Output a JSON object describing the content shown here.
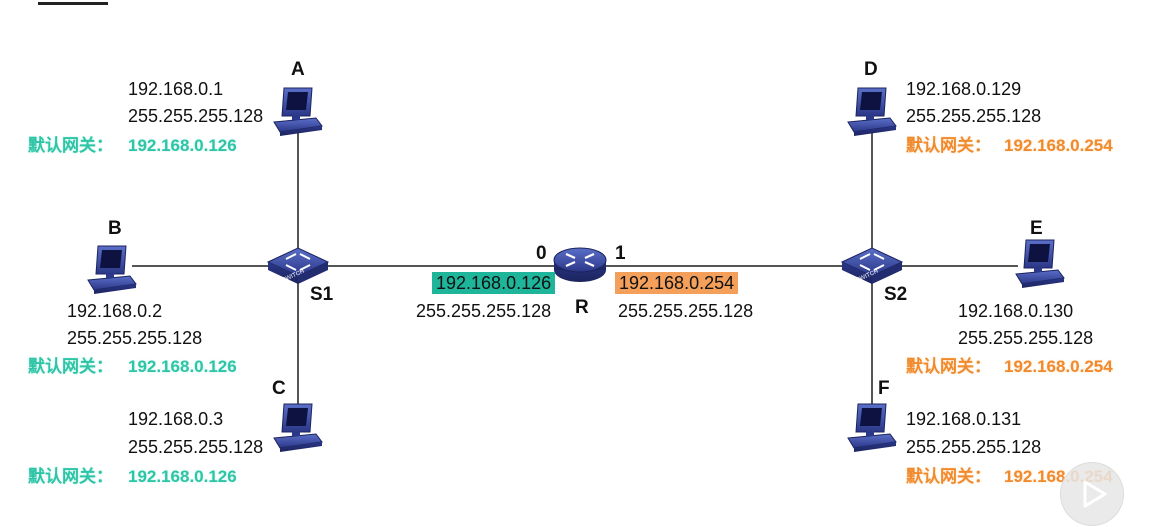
{
  "network": {
    "hosts": {
      "A": {
        "label": "A",
        "ip": "192.168.0.1",
        "mask": "255.255.255.128",
        "gw_label": "默认网关：",
        "gw": "192.168.0.126"
      },
      "B": {
        "label": "B",
        "ip": "192.168.0.2",
        "mask": "255.255.255.128",
        "gw_label": "默认网关：",
        "gw": "192.168.0.126"
      },
      "C": {
        "label": "C",
        "ip": "192.168.0.3",
        "mask": "255.255.255.128",
        "gw_label": "默认网关：",
        "gw": "192.168.0.126"
      },
      "D": {
        "label": "D",
        "ip": "192.168.0.129",
        "mask": "255.255.255.128",
        "gw_label": "默认网关：",
        "gw": "192.168.0.254"
      },
      "E": {
        "label": "E",
        "ip": "192.168.0.130",
        "mask": "255.255.255.128",
        "gw_label": "默认网关：",
        "gw": "192.168.0.254"
      },
      "F": {
        "label": "F",
        "ip": "192.168.0.131",
        "mask": "255.255.255.128",
        "gw_label": "默认网关：",
        "gw": "192.168.0.254"
      }
    },
    "switches": {
      "S1": {
        "label": "S1",
        "device_text": "SWITCH"
      },
      "S2": {
        "label": "S2",
        "device_text": "SWITCH"
      }
    },
    "router": {
      "label": "R",
      "device_text": "ROUTER",
      "port0": {
        "label": "0",
        "ip": "192.168.0.126",
        "mask": "255.255.255.128"
      },
      "port1": {
        "label": "1",
        "ip": "192.168.0.254",
        "mask": "255.255.255.128"
      }
    }
  },
  "colors": {
    "left_subnet": "#2ec4a6",
    "right_subnet": "#f08a2c",
    "left_iface_bg": "#1fb59a",
    "right_iface_bg": "#f5a05a",
    "device_blue": "#2d3a8c",
    "link": "#555555"
  },
  "icons": {
    "pc": "desktop-computer-icon",
    "switch": "network-switch-icon",
    "router": "router-icon",
    "play": "play-icon"
  }
}
